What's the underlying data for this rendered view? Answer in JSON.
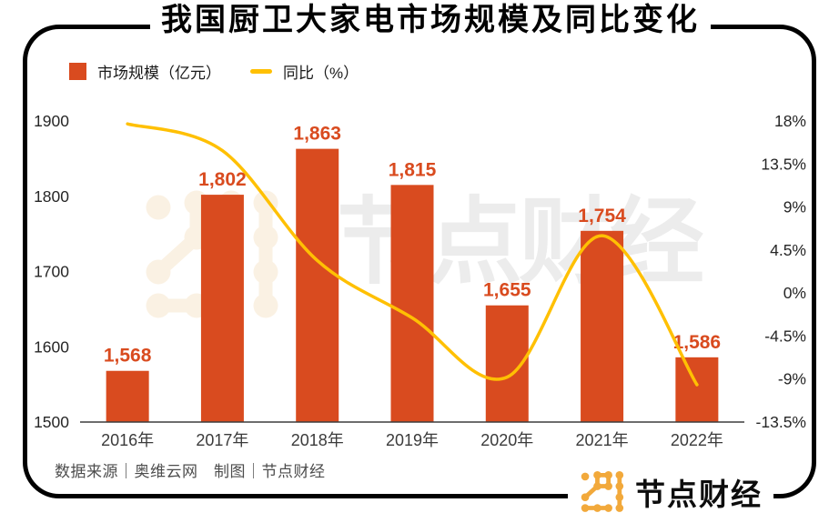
{
  "title": "我国厨卫大家电市场规模及同比变化",
  "legend": {
    "bar_label": "市场规模（亿元）",
    "line_label": "同比（%）"
  },
  "footer": {
    "source": "数据来源｜奥维云网　制图｜节点财经"
  },
  "logo": {
    "text": "节点财经"
  },
  "watermark": {
    "text": "节点财经"
  },
  "colors": {
    "bar": "#D94B1F",
    "line": "#FFC003",
    "value_label": "#D94B1F",
    "axis_text": "#262626",
    "category_text": "#3b3b3b",
    "axis_line": "#3d3d3d",
    "footer_text": "#4d4d4d",
    "logo_orange": "#F2A93B",
    "watermark_text": "#ECECEC",
    "watermark_icon": "#FAF0E1",
    "frame": "#000000"
  },
  "chart_data": {
    "type": "bar+line combo",
    "title": "我国厨卫大家电市场规模及同比变化",
    "categories": [
      "2016年",
      "2017年",
      "2018年",
      "2019年",
      "2020年",
      "2021年",
      "2022年"
    ],
    "series": [
      {
        "name": "市场规模（亿元）",
        "type": "bar",
        "axis": "left",
        "values": [
          1568,
          1802,
          1863,
          1815,
          1655,
          1754,
          1586
        ],
        "labels": [
          "1,568",
          "1,802",
          "1,863",
          "1,815",
          "1,655",
          "1,754",
          "1,586"
        ]
      },
      {
        "name": "同比（%）",
        "type": "line",
        "axis": "right",
        "values": [
          17.7,
          14.9,
          3.4,
          -2.6,
          -8.8,
          6.0,
          -9.6
        ]
      }
    ],
    "left_axis": {
      "ticks": [
        "1900",
        "1800",
        "1700",
        "1600",
        "1500"
      ],
      "min": 1500,
      "max": 1900
    },
    "right_axis": {
      "ticks": [
        "18%",
        "13.5%",
        "9%",
        "4.5%",
        "0%",
        "-4.5%",
        "-9%",
        "-13.5%"
      ],
      "min": -13.5,
      "max": 18
    },
    "grid": false,
    "legend_position": "top-left",
    "source_note": "数据来源｜奥维云网　制图｜节点财经"
  }
}
